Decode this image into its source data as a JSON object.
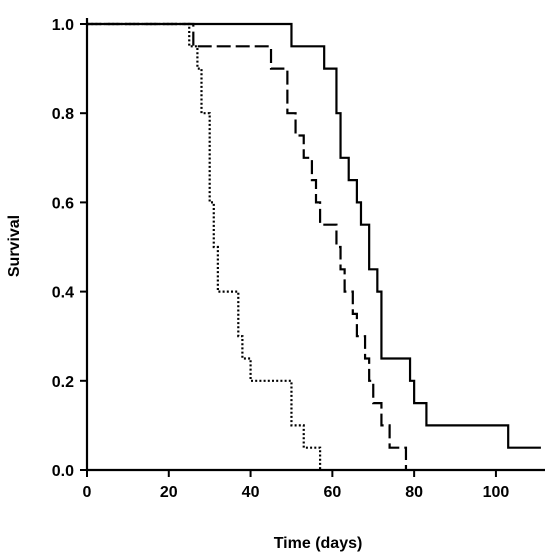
{
  "chart_data": {
    "type": "line",
    "step": true,
    "xlabel": "Time (days)",
    "ylabel": "Survival",
    "xlim": [
      0,
      112
    ],
    "ylim": [
      0,
      1.0
    ],
    "xticks": [
      0,
      20,
      40,
      60,
      80,
      100
    ],
    "yticks": [
      0.0,
      0.2,
      0.4,
      0.6,
      0.8,
      1.0
    ],
    "xtick_labels": [
      "0",
      "20",
      "40",
      "60",
      "80",
      "100"
    ],
    "ytick_labels": [
      "0.0",
      "0.2",
      "0.4",
      "0.6",
      "0.8",
      "1.0"
    ],
    "grid": false,
    "series": [
      {
        "style": "solid",
        "x": [
          0,
          50,
          58,
          61,
          62,
          64,
          66,
          67,
          69,
          71,
          72,
          79,
          80,
          83,
          103,
          111
        ],
        "y": [
          1.0,
          0.95,
          0.9,
          0.8,
          0.7,
          0.65,
          0.6,
          0.55,
          0.45,
          0.4,
          0.25,
          0.2,
          0.15,
          0.1,
          0.05,
          0.05
        ]
      },
      {
        "style": "dashed",
        "x": [
          0,
          26,
          45,
          49,
          51,
          53,
          55,
          56,
          57,
          61,
          62,
          63,
          65,
          66,
          68,
          69,
          70,
          72,
          74,
          76,
          78
        ],
        "y": [
          1.0,
          0.95,
          0.9,
          0.8,
          0.75,
          0.7,
          0.65,
          0.6,
          0.55,
          0.5,
          0.45,
          0.4,
          0.35,
          0.3,
          0.25,
          0.2,
          0.15,
          0.1,
          0.05,
          0.05,
          0.0
        ]
      },
      {
        "style": "dotted",
        "x": [
          0,
          25,
          27,
          28,
          30,
          31,
          32,
          35,
          37,
          38,
          40,
          48,
          50,
          51,
          53,
          55,
          57
        ],
        "y": [
          1.0,
          0.95,
          0.9,
          0.8,
          0.6,
          0.5,
          0.4,
          0.4,
          0.3,
          0.25,
          0.2,
          0.2,
          0.1,
          0.1,
          0.05,
          0.05,
          0.0
        ]
      }
    ]
  }
}
